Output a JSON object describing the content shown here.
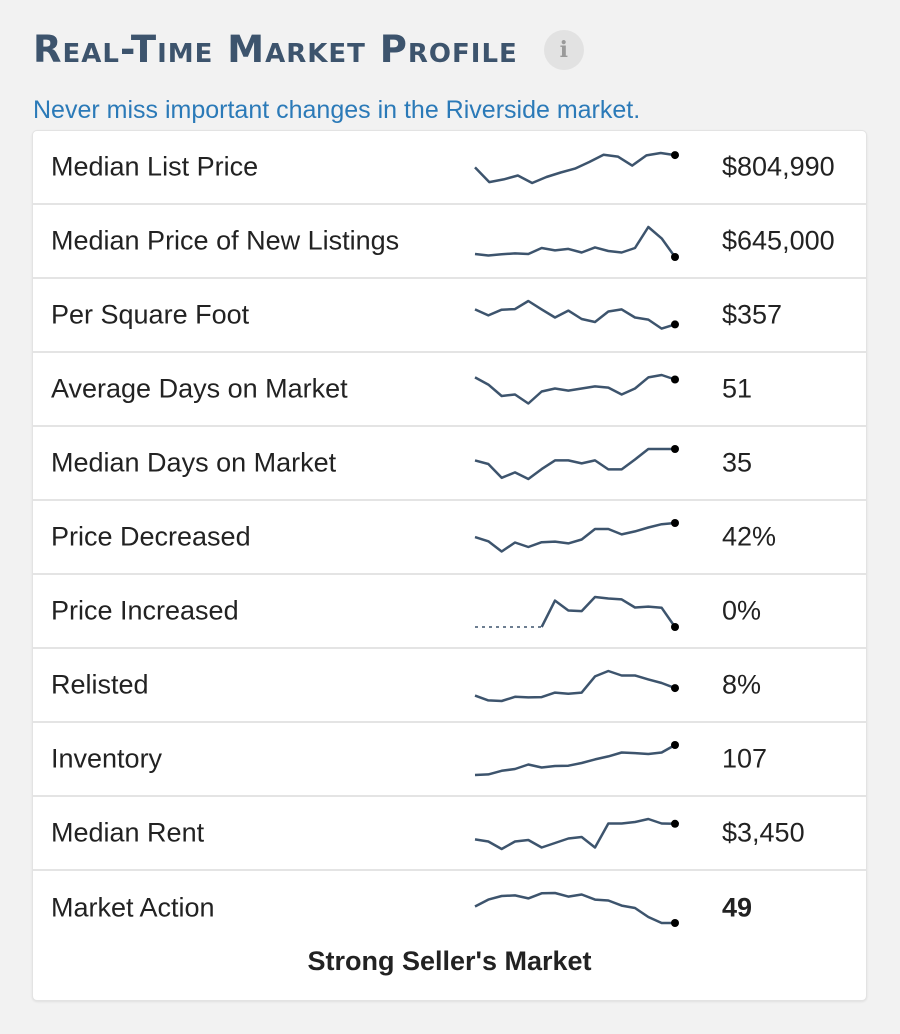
{
  "header": {
    "title": "Real-Time Market Profile",
    "info_icon": "info-icon",
    "info_glyph": "i",
    "subtitle": "Never miss important changes in the Riverside market."
  },
  "rows": [
    {
      "label": "Median List Price",
      "value": "$804,990",
      "trend": [
        0.52,
        0.03,
        0.12,
        0.25,
        0.0,
        0.2,
        0.35,
        0.48,
        0.7,
        0.94,
        0.88,
        0.58,
        0.92,
        1.0,
        0.93
      ]
    },
    {
      "label": "Median Price of New Listings",
      "value": "$645,000",
      "trend": [
        0.1,
        0.05,
        0.09,
        0.12,
        0.1,
        0.3,
        0.22,
        0.27,
        0.15,
        0.32,
        0.2,
        0.15,
        0.3,
        1.0,
        0.62,
        0.0
      ]
    },
    {
      "label": "Per Square Foot",
      "value": "$357",
      "trend": [
        0.72,
        0.52,
        0.71,
        0.73,
        1.0,
        0.72,
        0.45,
        0.68,
        0.4,
        0.3,
        0.65,
        0.72,
        0.45,
        0.38,
        0.08,
        0.22
      ]
    },
    {
      "label": "Average Days on Market",
      "value": "51",
      "trend": [
        0.92,
        0.68,
        0.3,
        0.35,
        0.05,
        0.45,
        0.55,
        0.48,
        0.55,
        0.62,
        0.58,
        0.35,
        0.55,
        0.92,
        1.0,
        0.85
      ]
    },
    {
      "label": "Median Days on Market",
      "value": "35",
      "trend": [
        0.62,
        0.5,
        0.04,
        0.22,
        0.0,
        0.33,
        0.62,
        0.62,
        0.52,
        0.62,
        0.32,
        0.32,
        0.65,
        1.0,
        1.0,
        1.0
      ]
    },
    {
      "label": "Price Decreased",
      "value": "42%",
      "trend": [
        0.53,
        0.39,
        0.05,
        0.35,
        0.2,
        0.36,
        0.38,
        0.32,
        0.45,
        0.8,
        0.8,
        0.62,
        0.72,
        0.85,
        0.96,
        1.0
      ]
    },
    {
      "label": "Price Increased",
      "value": "0%",
      "trend": [
        0.0,
        0.0,
        0.0,
        0.0,
        0.0,
        0.0,
        0.88,
        0.55,
        0.53,
        1.0,
        0.95,
        0.92,
        0.65,
        0.68,
        0.64,
        0.0
      ]
    },
    {
      "label": "Relisted",
      "value": "8%",
      "trend": [
        0.18,
        0.02,
        0.0,
        0.14,
        0.12,
        0.13,
        0.28,
        0.24,
        0.28,
        0.82,
        1.0,
        0.85,
        0.85,
        0.72,
        0.6,
        0.43
      ]
    },
    {
      "label": "Inventory",
      "value": "107",
      "trend": [
        0.0,
        0.02,
        0.14,
        0.2,
        0.35,
        0.25,
        0.3,
        0.31,
        0.4,
        0.52,
        0.62,
        0.75,
        0.73,
        0.7,
        0.75,
        1.0
      ]
    },
    {
      "label": "Median Rent",
      "value": "$3,450",
      "trend": [
        0.32,
        0.25,
        0.0,
        0.25,
        0.3,
        0.05,
        0.2,
        0.35,
        0.4,
        0.05,
        0.85,
        0.85,
        0.9,
        1.0,
        0.85,
        0.84
      ]
    },
    {
      "label": "Market Action",
      "value": "49",
      "trend": [
        0.55,
        0.78,
        0.9,
        0.92,
        0.82,
        0.99,
        1.0,
        0.88,
        0.95,
        0.78,
        0.75,
        0.58,
        0.5,
        0.2,
        0.0,
        0.0
      ]
    }
  ],
  "footer": {
    "market_status": "Strong Seller's Market"
  },
  "colors": {
    "title": "#3d546d",
    "link": "#2b7ab8",
    "spark_line": "#3d546d",
    "spark_dot": "#000000"
  }
}
